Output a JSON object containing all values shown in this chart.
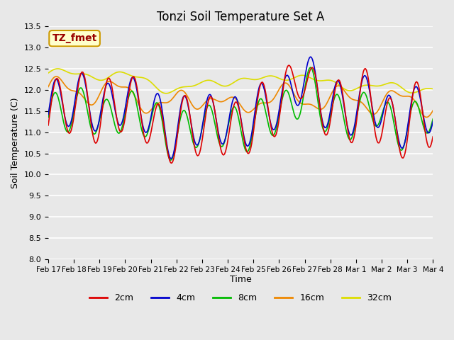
{
  "title": "Tonzi Soil Temperature Set A",
  "xlabel": "Time",
  "ylabel": "Soil Temperature (C)",
  "ylim": [
    8.0,
    13.5
  ],
  "annotation_text": "TZ_fmet",
  "annotation_bg": "#ffffcc",
  "annotation_border": "#cc9900",
  "annotation_text_color": "#990000",
  "series_colors": {
    "2cm": "#dd0000",
    "4cm": "#0000cc",
    "8cm": "#00bb00",
    "16cm": "#ee8800",
    "32cm": "#dddd00"
  },
  "legend_labels": [
    "2cm",
    "4cm",
    "8cm",
    "16cm",
    "32cm"
  ],
  "bg_color": "#e8e8e8",
  "x_labels": [
    "Feb 17",
    "Feb 18",
    "Feb 19",
    "Feb 20",
    "Feb 21",
    "Feb 22",
    "Feb 23",
    "Feb 24",
    "Feb 25",
    "Feb 26",
    "Feb 27",
    "Feb 28",
    "Mar 1",
    "Mar 2",
    "Mar 3",
    "Mar 4"
  ],
  "yticks": [
    8.0,
    8.5,
    9.0,
    9.5,
    10.0,
    10.5,
    11.0,
    11.5,
    12.0,
    12.5,
    13.0,
    13.5
  ]
}
